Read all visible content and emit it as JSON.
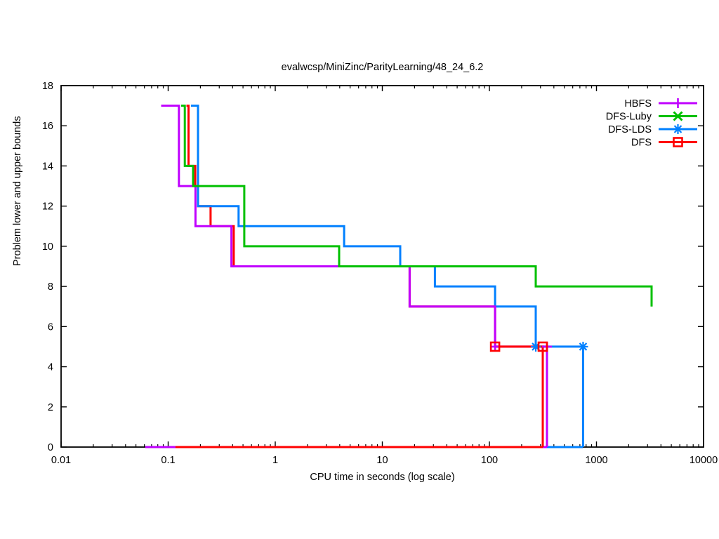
{
  "title": "evalwcsp/MiniZinc/ParityLearning/48_24_6.2",
  "axes": {
    "xlabel": "CPU time in seconds (log scale)",
    "ylabel": "Problem lower and upper bounds"
  },
  "chart_data": {
    "type": "line",
    "subtype": "step-staircase-bounds",
    "x_scale": "log",
    "xlim": [
      0.01,
      10000
    ],
    "ylim": [
      0,
      18
    ],
    "grid": false,
    "x_ticks": [
      {
        "value": 0.01,
        "label": "0.01"
      },
      {
        "value": 0.1,
        "label": "0.1"
      },
      {
        "value": 1,
        "label": "1"
      },
      {
        "value": 10,
        "label": "10"
      },
      {
        "value": 100,
        "label": "100"
      },
      {
        "value": 1000,
        "label": "1000"
      },
      {
        "value": 10000,
        "label": "10000"
      }
    ],
    "y_ticks": [
      0,
      2,
      4,
      6,
      8,
      10,
      12,
      14,
      16,
      18
    ],
    "legend_position": "top-right-inside",
    "series": [
      {
        "name": "HBFS",
        "color": "#c000ff",
        "marker": "plus",
        "segments": {
          "upper": [
            [
              0.086,
              17
            ],
            [
              0.126,
              17
            ],
            [
              0.126,
              13
            ],
            [
              0.18,
              13
            ],
            [
              0.18,
              11
            ],
            [
              0.39,
              11
            ],
            [
              0.39,
              9
            ],
            [
              18,
              9
            ],
            [
              18,
              7
            ],
            [
              113,
              7
            ],
            [
              113,
              5
            ],
            [
              345,
              5
            ],
            [
              345,
              0
            ]
          ],
          "lower": [
            [
              0.061,
              0
            ],
            [
              345,
              0
            ]
          ]
        },
        "marker_points": [
          [
            113,
            5
          ],
          [
            345,
            5
          ]
        ]
      },
      {
        "name": "DFS-Luby",
        "color": "#00c000",
        "marker": "cross",
        "segments": {
          "upper": [
            [
              0.132,
              17
            ],
            [
              0.143,
              17
            ],
            [
              0.143,
              14
            ],
            [
              0.171,
              14
            ],
            [
              0.171,
              13
            ],
            [
              0.514,
              13
            ],
            [
              0.514,
              10
            ],
            [
              3.95,
              10
            ],
            [
              3.95,
              9
            ],
            [
              271,
              9
            ],
            [
              271,
              8
            ],
            [
              3270,
              8
            ],
            [
              3270,
              7
            ]
          ]
        },
        "marker_points": []
      },
      {
        "name": "DFS-LDS",
        "color": "#0080ff",
        "marker": "star",
        "segments": {
          "upper": [
            [
              0.163,
              17
            ],
            [
              0.19,
              17
            ],
            [
              0.19,
              12
            ],
            [
              0.455,
              12
            ],
            [
              0.455,
              11
            ],
            [
              4.4,
              11
            ],
            [
              4.4,
              10
            ],
            [
              14.7,
              10
            ],
            [
              14.7,
              9
            ],
            [
              31,
              9
            ],
            [
              31,
              8
            ],
            [
              113,
              8
            ],
            [
              113,
              7
            ],
            [
              271,
              7
            ],
            [
              271,
              5
            ],
            [
              750,
              5
            ],
            [
              750,
              0
            ]
          ],
          "lower": [
            [
              0.19,
              0
            ],
            [
              750,
              0
            ]
          ]
        },
        "marker_points": [
          [
            271,
            5
          ],
          [
            750,
            5
          ]
        ]
      },
      {
        "name": "DFS",
        "color": "#ff0000",
        "marker": "square",
        "segments": {
          "upper_a": [
            [
              0.148,
              17
            ],
            [
              0.155,
              17
            ],
            [
              0.155,
              14
            ],
            [
              0.179,
              14
            ],
            [
              0.179,
              13
            ],
            [
              0.19,
              13
            ],
            [
              0.19,
              12
            ],
            [
              0.249,
              12
            ],
            [
              0.249,
              11
            ],
            [
              0.41,
              11
            ],
            [
              0.41,
              9
            ],
            [
              18,
              9
            ],
            [
              18,
              7
            ],
            [
              113,
              7
            ],
            [
              113,
              5
            ]
          ],
          "upper_b": [
            [
              113,
              5
            ],
            [
              315,
              5
            ],
            [
              315,
              0
            ]
          ],
          "lower": [
            [
              0.117,
              0
            ],
            [
              315,
              0
            ]
          ]
        },
        "marker_points": [
          [
            113,
            5
          ],
          [
            315,
            5
          ]
        ]
      }
    ],
    "draw_order": [
      [
        "DFS",
        "upper_a"
      ],
      [
        "DFS-LDS",
        "lower"
      ],
      [
        "DFS-LDS",
        "upper"
      ],
      [
        "HBFS",
        "lower"
      ],
      [
        "HBFS",
        "upper"
      ],
      [
        "DFS-Luby",
        "upper"
      ],
      [
        "DFS",
        "lower"
      ],
      [
        "DFS",
        "upper_b"
      ]
    ]
  }
}
